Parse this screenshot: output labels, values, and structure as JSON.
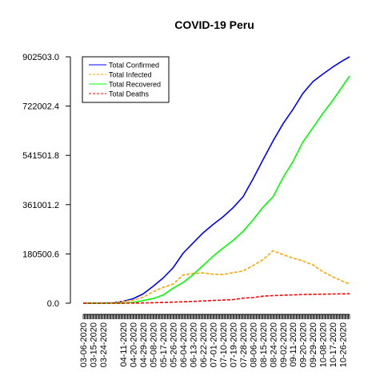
{
  "chart_data": {
    "type": "line",
    "title": "COVID-19 Peru",
    "xlabel": "",
    "ylabel": "",
    "x_start": "03-06-2020",
    "x_end": "11-01-2020",
    "x_tick_labels": [
      "03-06-2020",
      "03-15-2020",
      "03-24-2020",
      "04-11-2020",
      "04-20-2020",
      "04-29-2020",
      "05-08-2020",
      "05-17-2020",
      "05-26-2020",
      "06-04-2020",
      "06-13-2020",
      "06-22-2020",
      "07-01-2020",
      "07-10-2020",
      "07-19-2020",
      "07-28-2020",
      "08-06-2020",
      "08-15-2020",
      "08-24-2020",
      "09-02-2020",
      "09-11-2020",
      "09-20-2020",
      "09-29-2020",
      "10-08-2020",
      "10-17-2020",
      "10-26-2020"
    ],
    "y_ticks": [
      0.0,
      180500.6,
      361001.2,
      541501.8,
      722002.4,
      902503.0
    ],
    "y_tick_labels": [
      "0.0",
      "180500.6",
      "361001.2",
      "541501.8",
      "722002.4",
      "902503.0"
    ],
    "ylim": [
      0,
      902503
    ],
    "grid": false,
    "legend": {
      "position": "top-left",
      "box": true
    },
    "series": [
      {
        "name": "Total Confirmed",
        "color": "#0000ff",
        "dash": "solid",
        "points": [
          [
            "03-06-2020",
            1
          ],
          [
            "03-15-2020",
            71
          ],
          [
            "03-24-2020",
            480
          ],
          [
            "04-02-2020",
            1414
          ],
          [
            "04-11-2020",
            6848
          ],
          [
            "04-20-2020",
            16325
          ],
          [
            "04-29-2020",
            33931
          ],
          [
            "05-08-2020",
            61847
          ],
          [
            "05-17-2020",
            92273
          ],
          [
            "05-26-2020",
            129751
          ],
          [
            "06-04-2020",
            183198
          ],
          [
            "06-13-2020",
            220749
          ],
          [
            "06-22-2020",
            257447
          ],
          [
            "07-01-2020",
            288477
          ],
          [
            "07-10-2020",
            316448
          ],
          [
            "07-19-2020",
            349500
          ],
          [
            "07-28-2020",
            389717
          ],
          [
            "08-06-2020",
            455409
          ],
          [
            "08-15-2020",
            525803
          ],
          [
            "08-24-2020",
            594326
          ],
          [
            "09-02-2020",
            657129
          ],
          [
            "09-11-2020",
            710067
          ],
          [
            "09-20-2020",
            768895
          ],
          [
            "09-29-2020",
            811768
          ],
          [
            "10-08-2020",
            839475
          ],
          [
            "10-17-2020",
            865549
          ],
          [
            "10-26-2020",
            888715
          ],
          [
            "11-01-2020",
            902503
          ]
        ]
      },
      {
        "name": "Total Infected",
        "color": "#ffa500",
        "dash": "dashed",
        "points": [
          [
            "03-06-2020",
            1
          ],
          [
            "03-15-2020",
            70
          ],
          [
            "03-24-2020",
            470
          ],
          [
            "04-02-2020",
            1300
          ],
          [
            "04-11-2020",
            6500
          ],
          [
            "04-20-2020",
            11000
          ],
          [
            "04-29-2020",
            22000
          ],
          [
            "05-08-2020",
            42000
          ],
          [
            "05-17-2020",
            58000
          ],
          [
            "05-26-2020",
            70000
          ],
          [
            "06-04-2020",
            103000
          ],
          [
            "06-13-2020",
            109000
          ],
          [
            "06-22-2020",
            111000
          ],
          [
            "07-01-2020",
            106000
          ],
          [
            "07-10-2020",
            105000
          ],
          [
            "07-19-2020",
            112000
          ],
          [
            "07-28-2020",
            118000
          ],
          [
            "08-06-2020",
            138000
          ],
          [
            "08-15-2020",
            160000
          ],
          [
            "08-24-2020",
            192000
          ],
          [
            "09-02-2020",
            178000
          ],
          [
            "09-11-2020",
            165000
          ],
          [
            "09-20-2020",
            155000
          ],
          [
            "09-29-2020",
            140000
          ],
          [
            "10-08-2020",
            115000
          ],
          [
            "10-17-2020",
            96000
          ],
          [
            "10-26-2020",
            80000
          ],
          [
            "11-01-2020",
            70000
          ]
        ]
      },
      {
        "name": "Total Recovered",
        "color": "#00ff00",
        "dash": "solid",
        "points": [
          [
            "03-06-2020",
            0
          ],
          [
            "03-15-2020",
            0
          ],
          [
            "03-24-2020",
            5
          ],
          [
            "04-02-2020",
            50
          ],
          [
            "04-11-2020",
            200
          ],
          [
            "04-20-2020",
            3000
          ],
          [
            "04-29-2020",
            10000
          ],
          [
            "05-08-2020",
            17000
          ],
          [
            "05-17-2020",
            30000
          ],
          [
            "05-26-2020",
            55000
          ],
          [
            "06-04-2020",
            76000
          ],
          [
            "06-13-2020",
            105000
          ],
          [
            "06-22-2020",
            138000
          ],
          [
            "07-01-2020",
            172000
          ],
          [
            "07-10-2020",
            202000
          ],
          [
            "07-19-2020",
            230000
          ],
          [
            "07-28-2020",
            263000
          ],
          [
            "08-06-2020",
            305000
          ],
          [
            "08-15-2020",
            352000
          ],
          [
            "08-24-2020",
            390000
          ],
          [
            "09-02-2020",
            460000
          ],
          [
            "09-11-2020",
            519000
          ],
          [
            "09-20-2020",
            591000
          ],
          [
            "09-29-2020",
            643000
          ],
          [
            "10-08-2020",
            696000
          ],
          [
            "10-17-2020",
            744000
          ],
          [
            "10-26-2020",
            797000
          ],
          [
            "11-01-2020",
            832000
          ]
        ]
      },
      {
        "name": "Total Deaths",
        "color": "#ff0000",
        "dash": "dashed",
        "points": [
          [
            "03-06-2020",
            0
          ],
          [
            "03-15-2020",
            0
          ],
          [
            "03-24-2020",
            5
          ],
          [
            "04-02-2020",
            55
          ],
          [
            "04-11-2020",
            181
          ],
          [
            "04-20-2020",
            445
          ],
          [
            "04-29-2020",
            943
          ],
          [
            "05-08-2020",
            1714
          ],
          [
            "05-17-2020",
            2648
          ],
          [
            "05-26-2020",
            3788
          ],
          [
            "06-04-2020",
            5162
          ],
          [
            "06-13-2020",
            6308
          ],
          [
            "06-22-2020",
            8223
          ],
          [
            "07-01-2020",
            9860
          ],
          [
            "07-10-2020",
            11500
          ],
          [
            "07-19-2020",
            13187
          ],
          [
            "07-28-2020",
            18418
          ],
          [
            "08-06-2020",
            20424
          ],
          [
            "08-15-2020",
            25856
          ],
          [
            "08-24-2020",
            27813
          ],
          [
            "09-02-2020",
            29259
          ],
          [
            "09-11-2020",
            30526
          ],
          [
            "09-20-2020",
            31568
          ],
          [
            "09-29-2020",
            32463
          ],
          [
            "10-08-2020",
            33158
          ],
          [
            "10-17-2020",
            33820
          ],
          [
            "10-26-2020",
            34362
          ],
          [
            "11-01-2020",
            34671
          ]
        ]
      }
    ]
  }
}
